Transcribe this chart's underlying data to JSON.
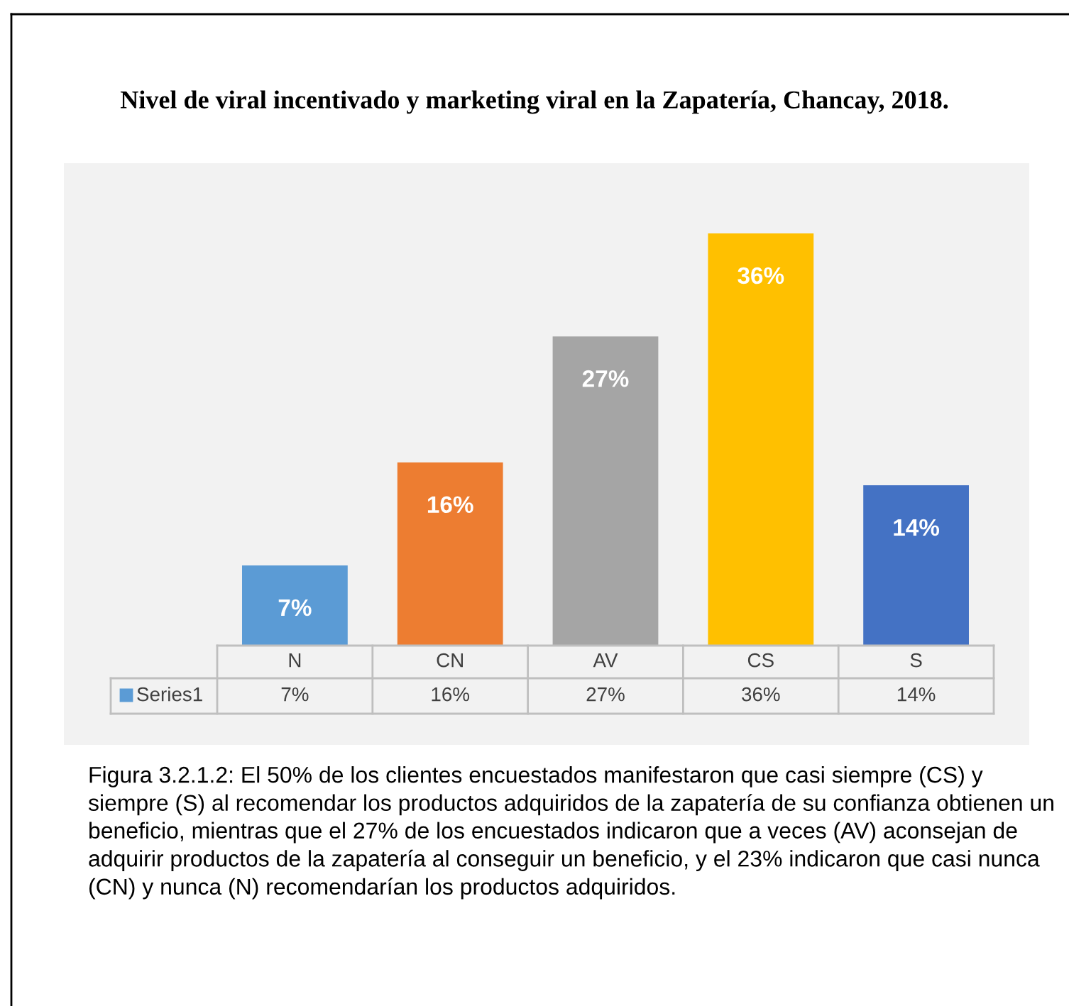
{
  "chart_data": {
    "type": "bar",
    "title": "Nivel de viral incentivado y marketing viral en la Zapatería, Chancay, 2018.",
    "categories": [
      "N",
      "CN",
      "AV",
      "CS",
      "S"
    ],
    "series": [
      {
        "name": "Series1",
        "color": "#5b9bd5",
        "colors": [
          "#5b9bd5",
          "#ed7d31",
          "#a5a5a5",
          "#ffc000",
          "#4472c4"
        ],
        "values": [
          7,
          16,
          27,
          36,
          14
        ],
        "value_labels": [
          "7%",
          "16%",
          "27%",
          "36%",
          "14%"
        ]
      }
    ],
    "annotations": [
      "Figura 3.2.1.2: El 50% de los clientes encuestados manifestaron que casi siempre (CS) y siempre (S) al recomendar los productos adquiridos de la zapatería de su confianza obtienen un beneficio, mientras que el 27% de los encuestados indicaron que a veces (AV) aconsejan de adquirir productos de la zapatería al conseguir un beneficio, y el 23% indicaron que casi nunca (CN) y nunca (N) recomendarían los productos adquiridos."
    ],
    "legend": "bottom left"
  }
}
